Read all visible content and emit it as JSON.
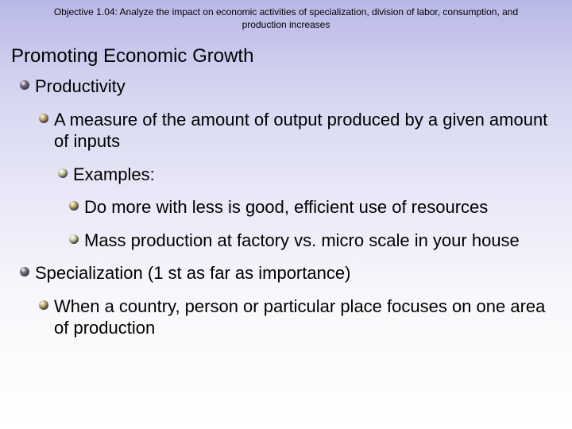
{
  "header": "Objective 1.04: Analyze the impact on economic activities of specialization, division of labor, consumption, and production increases",
  "title": "Promoting Economic Growth",
  "bullets": [
    {
      "level": 1,
      "text": "Productivity",
      "color": "#7a6a8a"
    },
    {
      "level": 2,
      "text": "A measure of the amount of output produced by a given amount of inputs",
      "color": "#c9a86a"
    },
    {
      "level": 3,
      "text": "Examples:",
      "color": "#cfcfa8"
    },
    {
      "level": 4,
      "text": "Do more with less is good, efficient use of resources",
      "color": "#c9a86a"
    },
    {
      "level": 4,
      "text": "Mass production at factory vs. micro scale in your house",
      "color": "#cfcfa8"
    },
    {
      "level": 1,
      "text": "Specialization (1 st as far as importance)",
      "color": "#7a6a8a"
    },
    {
      "level": 2,
      "text": "When a country, person or particular place focuses on one area of production",
      "color": "#c9a86a"
    }
  ],
  "style": {
    "background_gradient": [
      "#b8b8e8",
      "#ffffff"
    ],
    "header_fontsize": 12,
    "title_fontsize": 24,
    "bullet_fontsize": 22,
    "bullet_size": 14,
    "indent_step": 24
  }
}
